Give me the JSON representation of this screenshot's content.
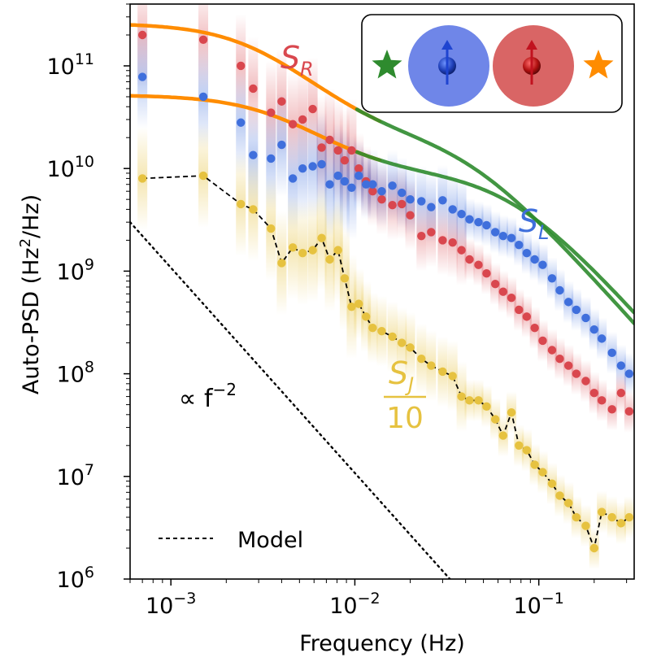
{
  "chart_data": {
    "type": "scatter",
    "x_scale": "log",
    "y_scale": "log",
    "xlabel": "Frequency (Hz)",
    "ylabel": "Auto-PSD (Hz²/Hz)",
    "xlim": [
      0.0006,
      0.33
    ],
    "ylim": [
      1000000,
      400000000000
    ],
    "x_ticks": [
      {
        "value": 0.001,
        "base": "10",
        "exp": "−3"
      },
      {
        "value": 0.01,
        "base": "10",
        "exp": "−2"
      },
      {
        "value": 0.1,
        "base": "10",
        "exp": "−1"
      }
    ],
    "y_ticks": [
      {
        "value": 1000000,
        "base": "10",
        "exp": "6"
      },
      {
        "value": 10000000,
        "base": "10",
        "exp": "7"
      },
      {
        "value": 100000000,
        "base": "10",
        "exp": "8"
      },
      {
        "value": 1000000000,
        "base": "10",
        "exp": "9"
      },
      {
        "value": 10000000000,
        "base": "10",
        "exp": "10"
      },
      {
        "value": 100000000000,
        "base": "10",
        "exp": "11"
      }
    ],
    "x": [
      0.0007,
      0.0015,
      0.0024,
      0.0028,
      0.0035,
      0.004,
      0.0046,
      0.0052,
      0.0059,
      0.0066,
      0.0073,
      0.0081,
      0.0088,
      0.0096,
      0.0105,
      0.0115,
      0.0125,
      0.014,
      0.016,
      0.018,
      0.02,
      0.023,
      0.026,
      0.03,
      0.034,
      0.038,
      0.042,
      0.047,
      0.052,
      0.058,
      0.064,
      0.071,
      0.078,
      0.086,
      0.095,
      0.105,
      0.118,
      0.13,
      0.145,
      0.16,
      0.18,
      0.2,
      0.22,
      0.25,
      0.28,
      0.31
    ],
    "series": [
      {
        "name": "S_R",
        "color": "#d9474e",
        "fit_color": "#ff8c00",
        "values": [
          200000000000.0,
          180000000000.0,
          100000000000.0,
          60000000000.0,
          35000000000.0,
          45000000000.0,
          27000000000.0,
          30000000000.0,
          38000000000.0,
          16000000000.0,
          19000000000.0,
          15000000000.0,
          12000000000.0,
          15000000000.0,
          10000000000.0,
          7500000000.0,
          6000000000.0,
          5000000000.0,
          4400000000.0,
          4500000000.0,
          3500000000.0,
          2200000000.0,
          2400000000.0,
          2000000000.0,
          1900000000.0,
          1600000000.0,
          1300000000.0,
          1150000000.0,
          950000000.0,
          750000000.0,
          630000000.0,
          550000000.0,
          420000000.0,
          360000000.0,
          280000000.0,
          210000000.0,
          170000000.0,
          140000000.0,
          120000000.0,
          100000000.0,
          85000000.0,
          65000000.0,
          55000000.0,
          45000000.0,
          65000000.0,
          43000000.0
        ]
      },
      {
        "name": "S_L",
        "color": "#3f6fdc",
        "fit_color": "#ff8c00",
        "values": [
          78000000000.0,
          50000000000.0,
          28000000000.0,
          13500000000.0,
          12500000000.0,
          17000000000.0,
          8000000000.0,
          10000000000.0,
          10500000000.0,
          11000000000.0,
          7000000000.0,
          8500000000.0,
          7500000000.0,
          6500000000.0,
          8500000000.0,
          7000000000.0,
          7000000000.0,
          6000000000.0,
          6800000000.0,
          5800000000.0,
          5000000000.0,
          4800000000.0,
          4200000000.0,
          4900000000.0,
          4000000000.0,
          3600000000.0,
          3200000000.0,
          3000000000.0,
          2800000000.0,
          2400000000.0,
          2200000000.0,
          2100000000.0,
          1800000000.0,
          1500000000.0,
          1300000000.0,
          1150000000.0,
          850000000.0,
          650000000.0,
          500000000.0,
          420000000.0,
          350000000.0,
          270000000.0,
          220000000.0,
          160000000.0,
          120000000.0,
          100000000.0
        ]
      },
      {
        "name": "S_J/10",
        "color": "#e6c240",
        "values": [
          8000000000.0,
          8500000000.0,
          4500000000.0,
          4000000000.0,
          2600000000.0,
          1200000000.0,
          1700000000.0,
          1500000000.0,
          1600000000.0,
          2100000000.0,
          1300000000.0,
          1600000000.0,
          850000000.0,
          450000000.0,
          480000000.0,
          360000000.0,
          280000000.0,
          260000000.0,
          230000000.0,
          200000000.0,
          180000000.0,
          140000000.0,
          120000000.0,
          105000000.0,
          95000000.0,
          60000000.0,
          55000000.0,
          55000000.0,
          48000000.0,
          36000000.0,
          25000000.0,
          42000000.0,
          20000000.0,
          18000000.0,
          13000000.0,
          11000000.0,
          8500000.0,
          6500000.0,
          5500000.0,
          4000000.0,
          3300000.0,
          2000000.0,
          4500000.0,
          4000000.0,
          3500000.0,
          4000000.0
        ]
      }
    ],
    "model_fits": {
      "S_R": {
        "A": 240000000000.0,
        "f0": 0.003,
        "B": 20000000000.0,
        "f1": 0.04,
        "transition": 0.012
      },
      "S_L": {
        "A": 43000000000.0,
        "f0": 0.004,
        "B": 9000000000.0,
        "f1": 0.07,
        "transition": 0.012
      },
      "far_fit_color": "#2e8b2e"
    },
    "model_label": "Model",
    "reference_line": {
      "label": "∝ f",
      "exponent": "−2",
      "anchor_f": 0.0006,
      "anchor_y": 3000000000.0,
      "slope": -2
    },
    "labels": {
      "S_R": {
        "base": "S",
        "sub": "R",
        "color": "#d9474e"
      },
      "S_L": {
        "base": "S",
        "sub": "L",
        "color": "#3f6fdc"
      },
      "S_J": {
        "base": "S",
        "sub": "J",
        "denominator": "10",
        "color": "#e6c240"
      }
    },
    "inset": {
      "items": [
        {
          "kind": "star",
          "color": "#2e8b2e",
          "name": "green-star"
        },
        {
          "kind": "spin-sphere",
          "color": "#6f86e8",
          "arrow": "#1f44d0",
          "name": "blue-spin"
        },
        {
          "kind": "spin-sphere",
          "color": "#d96565",
          "arrow": "#c1121f",
          "name": "red-spin"
        },
        {
          "kind": "star",
          "color": "#ff8c00",
          "name": "orange-star"
        }
      ]
    }
  }
}
